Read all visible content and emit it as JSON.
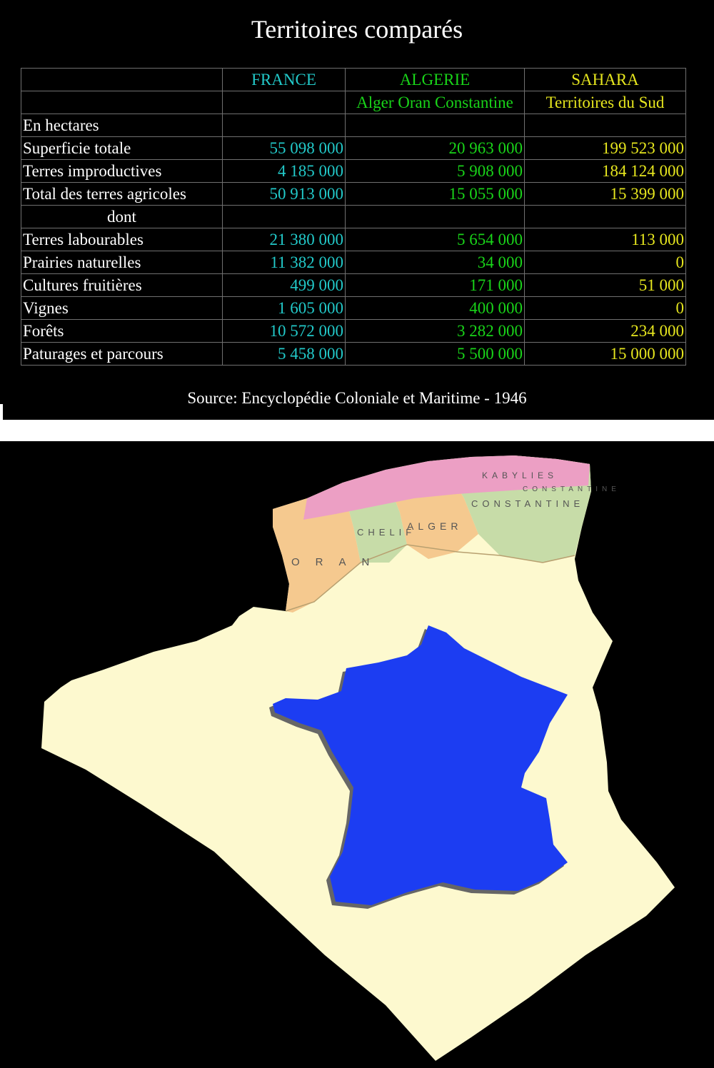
{
  "table": {
    "title": "Territoires comparés",
    "header": {
      "france": "FRANCE",
      "algerie": "ALGERIE",
      "sahara": "SAHARA",
      "algerie_sub": "Alger Oran Constantine",
      "sahara_sub": "Territoires du Sud"
    },
    "unit_label": "En hectares",
    "rows": [
      {
        "label": "Superficie totale",
        "france": "55 098 000",
        "algerie": "20 963 000",
        "sahara": "199 523 000"
      },
      {
        "label": "Terres improductives",
        "france": "4 185 000",
        "algerie": "5 908 000",
        "sahara": "184 124 000"
      },
      {
        "label": "Total des terres agricoles",
        "france": "50 913 000",
        "algerie": "15 055 000",
        "sahara": "15 399 000"
      },
      {
        "label": "dont",
        "france": "",
        "algerie": "",
        "sahara": ""
      },
      {
        "label": "Terres labourables",
        "france": "21 380 000",
        "algerie": "5 654 000",
        "sahara": "113 000"
      },
      {
        "label": "Prairies naturelles",
        "france": "11 382 000",
        "algerie": "34 000",
        "sahara": "0"
      },
      {
        "label": "Cultures fruitières",
        "france": "499 000",
        "algerie": "171 000",
        "sahara": "51 000"
      },
      {
        "label": "Vignes",
        "france": "1 605 000",
        "algerie": "400 000",
        "sahara": "0"
      },
      {
        "label": "Forêts",
        "france": "10 572 000",
        "algerie": "3 282 000",
        "sahara": "234 000"
      },
      {
        "label": "Paturages et parcours",
        "france": "5 458 000",
        "algerie": "5 500 000",
        "sahara": "15 000 000"
      }
    ],
    "source": "Source: Encyclopédie Coloniale et Maritime - 1946",
    "colors": {
      "france": "#22c9c9",
      "algerie": "#19d419",
      "sahara": "#e6e61e",
      "label": "#ffffff",
      "background": "#000000"
    }
  },
  "map": {
    "region_labels": [
      "KABYLIES",
      "CONSTANTINE",
      "CONSTANTINE",
      "CHELIF",
      "ALGER",
      "ORAN"
    ],
    "colors": {
      "background": "#000000",
      "algeria": "#fdf9cf",
      "france": "#1c3df2",
      "north_pink": "#ec9fc4",
      "north_orange": "#f5c98f",
      "north_green": "#c7dca8"
    }
  }
}
